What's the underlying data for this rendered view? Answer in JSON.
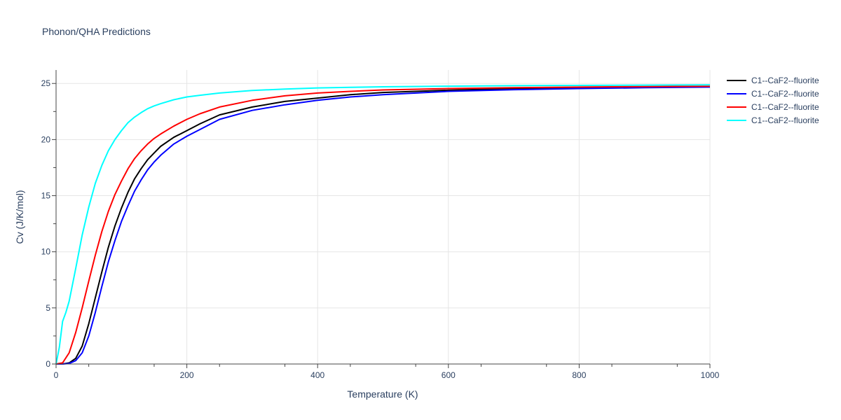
{
  "chart_data": {
    "type": "line",
    "title": "Phonon/QHA Predictions",
    "xlabel": "Temperature (K)",
    "ylabel": "Cv (J/K/mol)",
    "xlim": [
      0,
      1000
    ],
    "ylim": [
      0,
      26.2
    ],
    "xticks": [
      0,
      200,
      400,
      600,
      800,
      1000
    ],
    "yticks": [
      0,
      5,
      10,
      15,
      20,
      25
    ],
    "grid": true,
    "legend_position": "top-right",
    "series": [
      {
        "name": "C1--CaF2--fluorite",
        "color": "#000000",
        "x": [
          0,
          10,
          20,
          30,
          40,
          50,
          60,
          70,
          80,
          90,
          100,
          110,
          120,
          130,
          140,
          150,
          160,
          180,
          200,
          220,
          250,
          300,
          350,
          400,
          450,
          500,
          600,
          700,
          800,
          900,
          1000
        ],
        "y": [
          0,
          0,
          0.1,
          0.5,
          1.6,
          3.6,
          5.9,
          8.2,
          10.4,
          12.3,
          13.9,
          15.3,
          16.5,
          17.4,
          18.2,
          18.8,
          19.4,
          20.2,
          20.8,
          21.4,
          22.2,
          22.9,
          23.4,
          23.7,
          24.0,
          24.2,
          24.4,
          24.55,
          24.63,
          24.68,
          24.72
        ]
      },
      {
        "name": "C1--CaF2--fluorite",
        "color": "#0000ff",
        "x": [
          0,
          10,
          20,
          30,
          40,
          50,
          60,
          70,
          80,
          90,
          100,
          110,
          120,
          130,
          140,
          150,
          160,
          180,
          200,
          220,
          250,
          300,
          350,
          400,
          450,
          500,
          600,
          700,
          800,
          900,
          1000
        ],
        "y": [
          0,
          0,
          0.05,
          0.3,
          1.0,
          2.5,
          4.6,
          6.9,
          9.1,
          11.0,
          12.7,
          14.1,
          15.4,
          16.4,
          17.3,
          18.0,
          18.6,
          19.6,
          20.3,
          20.9,
          21.8,
          22.6,
          23.1,
          23.5,
          23.8,
          24.0,
          24.3,
          24.45,
          24.55,
          24.62,
          24.68
        ]
      },
      {
        "name": "C1--CaF2--fluorite",
        "color": "#ff0000",
        "x": [
          0,
          10,
          20,
          30,
          40,
          50,
          60,
          70,
          80,
          90,
          100,
          110,
          120,
          130,
          140,
          150,
          160,
          180,
          200,
          220,
          250,
          300,
          350,
          400,
          450,
          500,
          600,
          700,
          800,
          900,
          1000
        ],
        "y": [
          0,
          0.1,
          1.0,
          2.8,
          5.0,
          7.4,
          9.7,
          11.8,
          13.6,
          15.1,
          16.3,
          17.4,
          18.3,
          19.0,
          19.6,
          20.1,
          20.5,
          21.2,
          21.8,
          22.3,
          22.9,
          23.5,
          23.9,
          24.15,
          24.3,
          24.42,
          24.55,
          24.63,
          24.68,
          24.72,
          24.75
        ]
      },
      {
        "name": "C1--CaF2--fluorite",
        "color": "#00ffff",
        "x": [
          0,
          5,
          10,
          15,
          20,
          30,
          40,
          50,
          60,
          70,
          80,
          90,
          100,
          110,
          120,
          130,
          140,
          150,
          160,
          180,
          200,
          220,
          250,
          300,
          350,
          400,
          450,
          500,
          600,
          700,
          800,
          900,
          1000
        ],
        "y": [
          0,
          1.5,
          3.8,
          4.6,
          5.6,
          8.5,
          11.5,
          14.0,
          16.1,
          17.7,
          19.0,
          20.0,
          20.8,
          21.5,
          22.0,
          22.4,
          22.75,
          23.0,
          23.2,
          23.55,
          23.8,
          23.95,
          24.15,
          24.38,
          24.5,
          24.6,
          24.66,
          24.7,
          24.76,
          24.8,
          24.83,
          24.85,
          24.87
        ]
      }
    ]
  }
}
